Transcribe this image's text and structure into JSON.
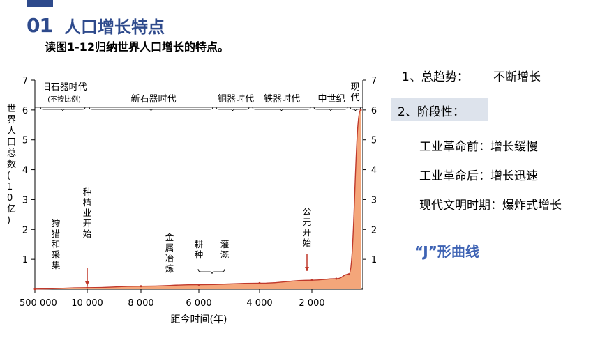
{
  "header": {
    "section_number": "01",
    "section_title": "人口增长特点",
    "subtitle": "读图1-12归纳世界人口增长的特点。"
  },
  "colors": {
    "accent": "#2e4a8c",
    "j_curve_text": "#3e63b4",
    "area_fill": "#f4a67a",
    "area_line": "#c0392b",
    "point_box": "#dde3ec"
  },
  "chart": {
    "ylabel": "世界人口总数(10亿)",
    "xlabel": "距今时间(年)",
    "y_ticks": [
      "1",
      "2",
      "3",
      "4",
      "5",
      "6",
      "7"
    ],
    "x_ticks": [
      "500 000",
      "10 000",
      "8 000",
      "6 000",
      "4 000",
      "2 000"
    ],
    "eras": [
      {
        "name": "旧石器时代",
        "note": "(不按比例)"
      },
      {
        "name": "新石器时代"
      },
      {
        "name": "铜器时代"
      },
      {
        "name": "铁器时代"
      },
      {
        "name": "中世纪"
      },
      {
        "name": "现代"
      }
    ],
    "events": [
      {
        "label": "狩猎和采集"
      },
      {
        "label": "种植业开始"
      },
      {
        "label": "金属冶炼"
      },
      {
        "label": "耕种"
      },
      {
        "label": "灌溉"
      },
      {
        "label": "公元开始"
      }
    ]
  },
  "chart_data": {
    "type": "area",
    "x": [
      "500 000",
      "10 000",
      "8 000",
      "6 000",
      "4 000",
      "2 000",
      "1 000",
      "500",
      "0"
    ],
    "values": [
      0.005,
      0.05,
      0.1,
      0.15,
      0.2,
      0.3,
      0.35,
      0.5,
      6.0
    ],
    "xlabel": "距今时间(年)",
    "ylabel": "世界人口总数(10亿)",
    "ylim": [
      0,
      7
    ]
  },
  "points": {
    "trend_label": "1、总趋势：",
    "trend_value": "不断增长",
    "stage_label": "2、阶段性：",
    "stages": [
      "工业革命前：增长缓慢",
      "工业革命后：增长迅速",
      "现代文明时期：爆炸式增长"
    ],
    "curve_name": "“J”形曲线"
  }
}
